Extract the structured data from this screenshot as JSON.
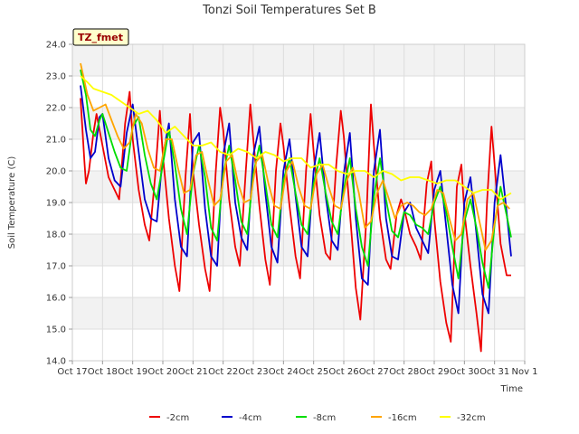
{
  "chart_data": {
    "type": "line",
    "title": "Tonzi Soil Temperatures Set B",
    "xlabel": "Time",
    "ylabel": "Soil Temperature (C)",
    "annotation": "TZ_fmet",
    "xlim": [
      17,
      32
    ],
    "ylim": [
      14.0,
      24.0
    ],
    "x_ticks": [
      {
        "v": 17,
        "label": "Oct 17"
      },
      {
        "v": 18,
        "label": "Oct 18"
      },
      {
        "v": 19,
        "label": "Oct 19"
      },
      {
        "v": 20,
        "label": "Oct 20"
      },
      {
        "v": 21,
        "label": "Oct 21"
      },
      {
        "v": 22,
        "label": "Oct 22"
      },
      {
        "v": 23,
        "label": "Oct 23"
      },
      {
        "v": 24,
        "label": "Oct 24"
      },
      {
        "v": 25,
        "label": "Oct 25"
      },
      {
        "v": 26,
        "label": "Oct 26"
      },
      {
        "v": 27,
        "label": "Oct 27"
      },
      {
        "v": 28,
        "label": "Oct 28"
      },
      {
        "v": 29,
        "label": "Oct 29"
      },
      {
        "v": 30,
        "label": "Oct 30"
      },
      {
        "v": 31,
        "label": "Oct 31"
      },
      {
        "v": 32,
        "label": "Nov 1"
      }
    ],
    "y_ticks": [
      14.0,
      15.0,
      16.0,
      17.0,
      18.0,
      19.0,
      20.0,
      21.0,
      22.0,
      23.0,
      24.0
    ],
    "grid": true,
    "legend_position": "bottom",
    "series": [
      {
        "name": "-2cm",
        "color": "#ee0000",
        "x": [
          17.27,
          17.4,
          17.45,
          17.55,
          17.7,
          17.8,
          18.0,
          18.2,
          18.4,
          18.55,
          18.75,
          18.9,
          19.0,
          19.2,
          19.4,
          19.55,
          19.75,
          19.9,
          20.0,
          20.2,
          20.4,
          20.55,
          20.75,
          20.9,
          21.0,
          21.2,
          21.4,
          21.55,
          21.75,
          21.9,
          22.0,
          22.2,
          22.4,
          22.55,
          22.75,
          22.9,
          23.0,
          23.2,
          23.4,
          23.55,
          23.75,
          23.9,
          24.0,
          24.2,
          24.4,
          24.55,
          24.75,
          24.9,
          25.0,
          25.2,
          25.4,
          25.55,
          25.75,
          25.9,
          26.0,
          26.2,
          26.4,
          26.55,
          26.75,
          26.9,
          27.0,
          27.2,
          27.4,
          27.55,
          27.75,
          27.9,
          28.0,
          28.2,
          28.4,
          28.55,
          28.75,
          28.9,
          29.0,
          29.2,
          29.4,
          29.55,
          29.75,
          29.9,
          30.0,
          30.2,
          30.4,
          30.55,
          30.75,
          30.9,
          31.0,
          31.2,
          31.4,
          31.55
        ],
        "y": [
          22.3,
          20.3,
          19.6,
          20.0,
          21.2,
          21.8,
          20.8,
          19.8,
          19.4,
          19.1,
          21.5,
          22.5,
          21.0,
          19.4,
          18.3,
          17.8,
          19.9,
          21.9,
          20.5,
          18.5,
          17.0,
          16.2,
          19.8,
          21.8,
          20.0,
          18.3,
          16.9,
          16.2,
          19.9,
          22.0,
          21.3,
          19.1,
          17.6,
          17.0,
          20.0,
          22.1,
          21.0,
          18.9,
          17.2,
          16.4,
          20.0,
          21.5,
          20.8,
          18.9,
          17.3,
          16.6,
          20.0,
          21.8,
          20.6,
          18.6,
          17.4,
          17.2,
          20.2,
          21.9,
          21.1,
          18.7,
          16.3,
          15.3,
          18.5,
          22.1,
          20.8,
          18.5,
          17.2,
          16.9,
          18.6,
          19.1,
          18.8,
          18.0,
          17.6,
          17.2,
          19.6,
          20.3,
          18.5,
          16.5,
          15.2,
          14.6,
          19.5,
          20.2,
          18.7,
          17.0,
          15.5,
          14.3,
          19.0,
          21.4,
          20.2,
          17.7,
          16.7,
          16.7
        ]
      },
      {
        "name": "-4cm",
        "color": "#0000cc",
        "x": [
          17.27,
          17.45,
          17.6,
          17.75,
          17.9,
          18.0,
          18.2,
          18.4,
          18.6,
          18.8,
          19.0,
          19.2,
          19.4,
          19.6,
          19.8,
          20.0,
          20.2,
          20.4,
          20.6,
          20.8,
          21.0,
          21.2,
          21.4,
          21.6,
          21.8,
          22.0,
          22.2,
          22.4,
          22.6,
          22.8,
          23.0,
          23.2,
          23.4,
          23.6,
          23.8,
          24.0,
          24.2,
          24.4,
          24.6,
          24.8,
          25.0,
          25.2,
          25.4,
          25.6,
          25.8,
          26.0,
          26.2,
          26.4,
          26.6,
          26.8,
          27.0,
          27.2,
          27.4,
          27.6,
          27.8,
          28.0,
          28.2,
          28.4,
          28.6,
          28.8,
          29.0,
          29.2,
          29.4,
          29.6,
          29.8,
          30.0,
          30.2,
          30.4,
          30.6,
          30.8,
          31.0,
          31.2,
          31.4,
          31.55
        ],
        "y": [
          22.7,
          21.3,
          20.4,
          20.6,
          21.7,
          21.8,
          20.4,
          19.7,
          19.5,
          21.2,
          22.1,
          20.6,
          19.1,
          18.5,
          18.4,
          20.5,
          21.5,
          19.1,
          17.6,
          17.3,
          20.9,
          21.2,
          18.8,
          17.3,
          17.0,
          20.5,
          21.5,
          19.0,
          17.9,
          17.5,
          20.5,
          21.4,
          19.3,
          17.6,
          17.1,
          20.0,
          21.0,
          19.2,
          17.6,
          17.3,
          20.0,
          21.2,
          19.2,
          17.8,
          17.5,
          19.9,
          21.2,
          18.5,
          16.6,
          16.4,
          20.0,
          21.3,
          18.5,
          17.3,
          17.2,
          18.7,
          19.0,
          18.2,
          17.8,
          17.4,
          19.4,
          20.0,
          18.2,
          16.4,
          15.5,
          19.0,
          19.8,
          18.0,
          16.1,
          15.5,
          19.0,
          20.5,
          18.7,
          17.3
        ]
      },
      {
        "name": "-8cm",
        "color": "#00dd00",
        "x": [
          17.27,
          17.45,
          17.6,
          17.75,
          17.9,
          18.0,
          18.2,
          18.4,
          18.6,
          18.8,
          19.0,
          19.2,
          19.4,
          19.6,
          19.8,
          20.0,
          20.2,
          20.4,
          20.6,
          20.8,
          21.0,
          21.2,
          21.4,
          21.6,
          21.8,
          22.0,
          22.2,
          22.4,
          22.6,
          22.8,
          23.0,
          23.2,
          23.4,
          23.6,
          23.8,
          24.0,
          24.2,
          24.4,
          24.6,
          24.8,
          25.0,
          25.2,
          25.4,
          25.6,
          25.8,
          26.0,
          26.2,
          26.4,
          26.6,
          26.8,
          27.0,
          27.2,
          27.4,
          27.6,
          27.8,
          28.0,
          28.2,
          28.4,
          28.6,
          28.8,
          29.0,
          29.2,
          29.4,
          29.6,
          29.8,
          30.0,
          30.2,
          30.4,
          30.6,
          30.8,
          31.0,
          31.2,
          31.4,
          31.55
        ],
        "y": [
          23.2,
          22.4,
          21.3,
          21.1,
          21.6,
          21.8,
          21.2,
          20.6,
          20.1,
          20.0,
          21.4,
          21.7,
          20.5,
          19.6,
          19.1,
          20.2,
          21.3,
          20.2,
          18.8,
          18.0,
          19.9,
          20.8,
          19.8,
          18.2,
          17.8,
          19.9,
          20.8,
          19.7,
          18.4,
          18.0,
          19.9,
          20.8,
          19.6,
          18.3,
          17.9,
          19.7,
          20.4,
          19.3,
          18.3,
          18.0,
          19.6,
          20.4,
          19.3,
          18.4,
          18.0,
          19.4,
          20.4,
          18.8,
          17.6,
          17.0,
          19.2,
          20.4,
          19.1,
          18.1,
          17.9,
          18.7,
          18.6,
          18.3,
          18.2,
          18.0,
          19.0,
          19.5,
          18.7,
          17.6,
          16.6,
          18.4,
          19.1,
          18.2,
          17.1,
          16.3,
          18.3,
          19.5,
          18.6,
          17.9
        ]
      },
      {
        "name": "-16cm",
        "color": "#ffa500",
        "x": [
          17.27,
          17.5,
          17.7,
          17.9,
          18.1,
          18.3,
          18.5,
          18.7,
          18.9,
          19.1,
          19.3,
          19.5,
          19.7,
          19.9,
          20.1,
          20.3,
          20.5,
          20.7,
          20.9,
          21.1,
          21.3,
          21.5,
          21.7,
          21.9,
          22.1,
          22.3,
          22.5,
          22.7,
          22.9,
          23.1,
          23.3,
          23.5,
          23.7,
          23.9,
          24.1,
          24.3,
          24.5,
          24.7,
          24.9,
          25.1,
          25.3,
          25.5,
          25.7,
          25.9,
          26.1,
          26.3,
          26.5,
          26.7,
          26.9,
          27.1,
          27.3,
          27.5,
          27.7,
          27.9,
          28.1,
          28.3,
          28.5,
          28.7,
          28.9,
          29.1,
          29.3,
          29.5,
          29.7,
          29.9,
          30.1,
          30.3,
          30.5,
          30.7,
          30.9,
          31.1,
          31.3,
          31.5
        ],
        "y": [
          23.4,
          22.4,
          21.9,
          22.0,
          22.1,
          21.6,
          21.1,
          20.7,
          20.9,
          21.8,
          21.5,
          20.7,
          20.1,
          20.0,
          21.0,
          21.0,
          20.1,
          19.3,
          19.4,
          20.5,
          20.6,
          19.7,
          18.9,
          19.1,
          20.3,
          20.5,
          19.6,
          19.0,
          19.1,
          20.3,
          20.5,
          19.6,
          18.9,
          18.8,
          20.0,
          20.3,
          19.5,
          18.9,
          18.8,
          19.9,
          20.2,
          19.5,
          18.9,
          18.8,
          19.7,
          20.1,
          19.3,
          18.2,
          18.4,
          19.3,
          19.7,
          19.1,
          18.5,
          18.9,
          19.0,
          18.9,
          18.7,
          18.6,
          18.8,
          19.4,
          19.3,
          18.5,
          17.8,
          18.0,
          19.1,
          19.3,
          18.4,
          17.5,
          17.8,
          18.9,
          19.0,
          18.8
        ]
      },
      {
        "name": "-32cm",
        "color": "#ffff00",
        "x": [
          17.27,
          17.5,
          17.7,
          18.0,
          18.3,
          18.6,
          18.9,
          19.2,
          19.5,
          19.8,
          20.1,
          20.4,
          20.7,
          21.0,
          21.3,
          21.6,
          21.9,
          22.2,
          22.5,
          22.8,
          23.1,
          23.4,
          23.7,
          24.0,
          24.3,
          24.6,
          24.9,
          25.2,
          25.5,
          25.8,
          26.1,
          26.4,
          26.7,
          27.0,
          27.3,
          27.6,
          27.9,
          28.2,
          28.5,
          28.8,
          29.1,
          29.4,
          29.7,
          30.0,
          30.3,
          30.6,
          30.9,
          31.2,
          31.55
        ],
        "y": [
          23.0,
          22.8,
          22.6,
          22.5,
          22.4,
          22.2,
          22.0,
          21.8,
          21.9,
          21.6,
          21.2,
          21.4,
          21.1,
          20.8,
          20.8,
          20.9,
          20.6,
          20.5,
          20.7,
          20.6,
          20.4,
          20.6,
          20.5,
          20.3,
          20.4,
          20.4,
          20.1,
          20.2,
          20.2,
          20.0,
          19.9,
          20.0,
          20.0,
          19.8,
          20.0,
          19.9,
          19.7,
          19.8,
          19.8,
          19.7,
          19.6,
          19.7,
          19.7,
          19.5,
          19.3,
          19.4,
          19.4,
          19.1,
          19.3
        ]
      }
    ]
  }
}
